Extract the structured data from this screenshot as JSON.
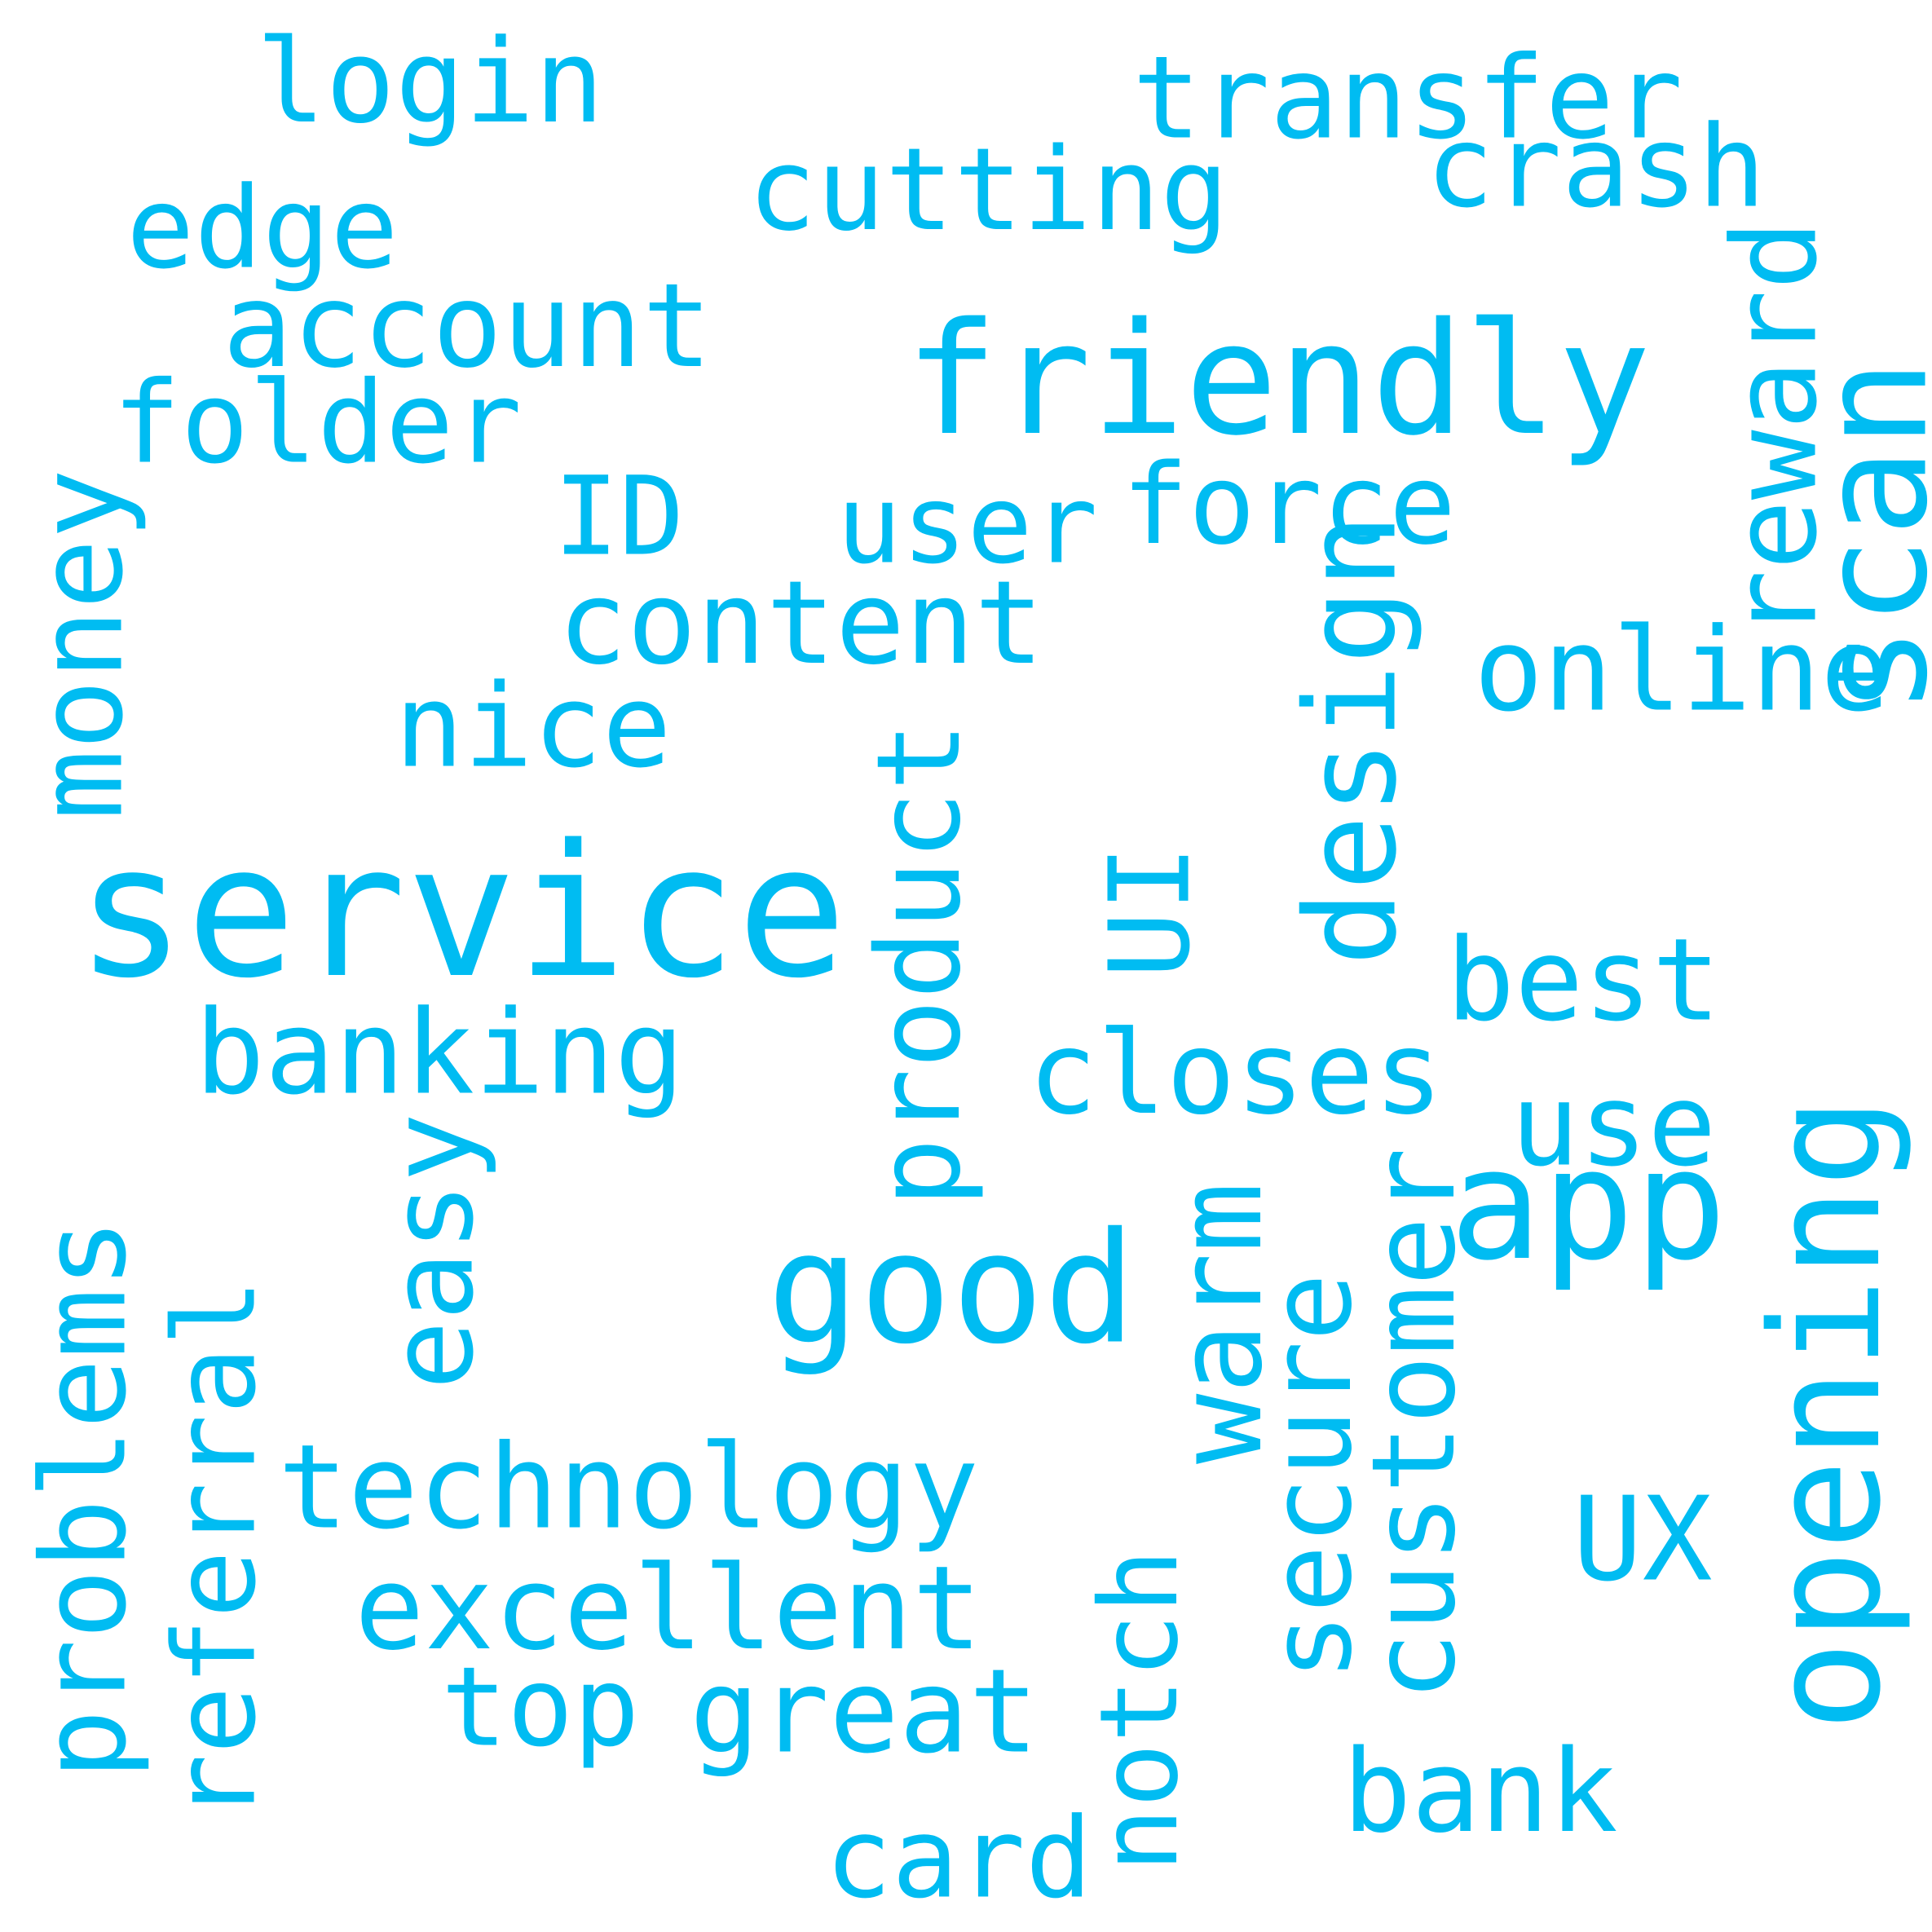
{
  "background_color": "#ffffff",
  "word_color": "#00bcf2",
  "words": [
    {
      "text": "service",
      "rotated": false
    },
    {
      "text": "friendly",
      "rotated": false
    },
    {
      "text": "good",
      "rotated": false
    },
    {
      "text": "app",
      "rotated": false
    },
    {
      "text": "opening",
      "rotated": true
    },
    {
      "text": "login",
      "rotated": false
    },
    {
      "text": "transfer",
      "rotated": false
    },
    {
      "text": "cutting",
      "rotated": false
    },
    {
      "text": "crash",
      "rotated": false
    },
    {
      "text": "edge",
      "rotated": false
    },
    {
      "text": "account",
      "rotated": false
    },
    {
      "text": "folder",
      "rotated": false
    },
    {
      "text": "reward",
      "rotated": true
    },
    {
      "text": "scan",
      "rotated": true
    },
    {
      "text": "ID",
      "rotated": false
    },
    {
      "text": "user",
      "rotated": false
    },
    {
      "text": "force",
      "rotated": false
    },
    {
      "text": "money",
      "rotated": true
    },
    {
      "text": "content",
      "rotated": false
    },
    {
      "text": "design",
      "rotated": true
    },
    {
      "text": "online",
      "rotated": false
    },
    {
      "text": "nice",
      "rotated": false
    },
    {
      "text": "product",
      "rotated": true
    },
    {
      "text": "UI",
      "rotated": true
    },
    {
      "text": "best",
      "rotated": false
    },
    {
      "text": "banking",
      "rotated": false
    },
    {
      "text": "closes",
      "rotated": false
    },
    {
      "text": "use",
      "rotated": false
    },
    {
      "text": "easy",
      "rotated": true
    },
    {
      "text": "warm",
      "rotated": true
    },
    {
      "text": "customer",
      "rotated": true
    },
    {
      "text": "problems",
      "rotated": true
    },
    {
      "text": "referral",
      "rotated": true
    },
    {
      "text": "secure",
      "rotated": true
    },
    {
      "text": "technology",
      "rotated": false
    },
    {
      "text": "UX",
      "rotated": false
    },
    {
      "text": "excellent",
      "rotated": false
    },
    {
      "text": "notch",
      "rotated": true
    },
    {
      "text": "top",
      "rotated": false
    },
    {
      "text": "great",
      "rotated": false
    },
    {
      "text": "bank",
      "rotated": false
    },
    {
      "text": "card",
      "rotated": false
    }
  ]
}
